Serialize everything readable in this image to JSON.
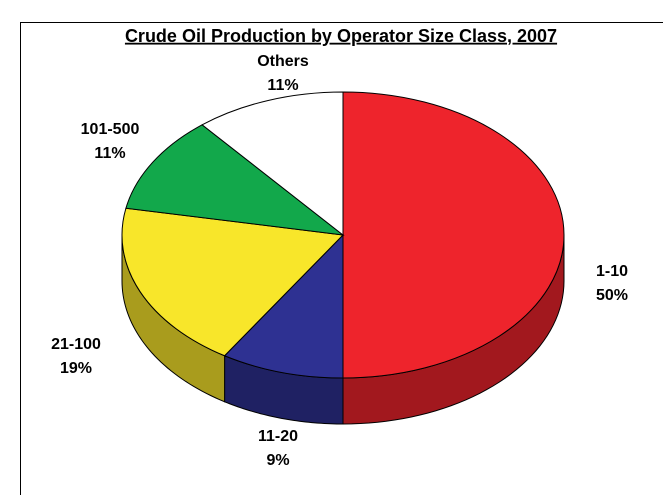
{
  "chart_data": {
    "type": "pie",
    "title": "Crude Oil Production by Operator Size Class, 2007",
    "categories": [
      "1-10",
      "11-20",
      "21-100",
      "101-500",
      "Others"
    ],
    "values": [
      50,
      9,
      19,
      11,
      11
    ],
    "value_labels": [
      "50%",
      "9%",
      "19%",
      "11%",
      "11%"
    ],
    "colors": [
      "#ee242c",
      "#2e3192",
      "#f8e62a",
      "#12a84b",
      "#ffffff"
    ]
  }
}
